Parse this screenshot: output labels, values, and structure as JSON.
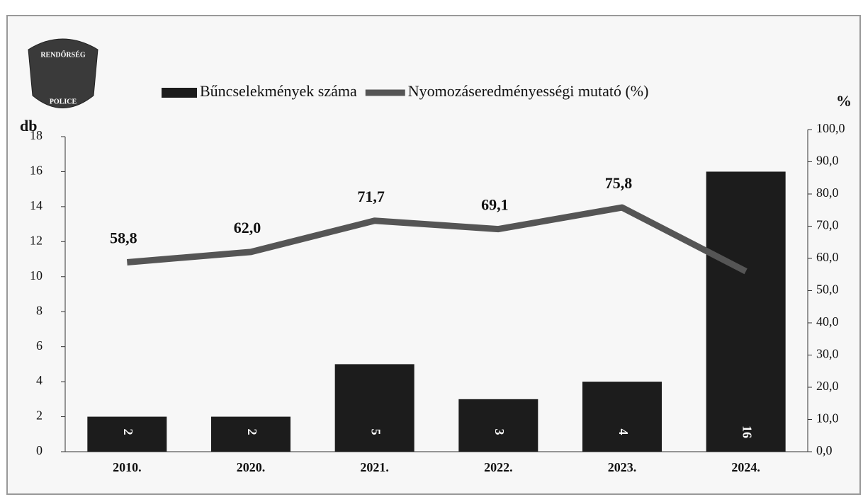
{
  "chart_data": {
    "type": "bar-line",
    "logo": {
      "top": "RENDŐRSÉG",
      "bottom": "POLICE"
    },
    "y_label": "db",
    "y2_label": "%",
    "categories": [
      "2010.",
      "2020.",
      "2021.",
      "2022.",
      "2023.",
      "2024."
    ],
    "series": [
      {
        "name": "Bűncselekmények száma",
        "type": "bar",
        "color": "#1c1c1c",
        "values": [
          2,
          2,
          5,
          3,
          4,
          16
        ]
      },
      {
        "name": "Nyomozáseredményességi mutató (%)",
        "type": "line",
        "color": "#555555",
        "axis": "y2",
        "values": [
          58.8,
          62.0,
          71.7,
          69.1,
          75.8,
          56
        ],
        "value_labels": [
          "58,8",
          "62,0",
          "71,7",
          "69,1",
          "75,8",
          null
        ]
      }
    ],
    "ylim": [
      0,
      18
    ],
    "yticks": [
      0,
      2,
      4,
      6,
      8,
      10,
      12,
      14,
      16,
      18
    ],
    "y2lim": [
      0,
      100
    ],
    "y2ticks": [
      {
        "value": 0,
        "label": "0,0"
      },
      {
        "value": 10,
        "label": "10,0"
      },
      {
        "value": 20,
        "label": "20,0"
      },
      {
        "value": 30,
        "label": "30,0"
      },
      {
        "value": 40,
        "label": "40,0"
      },
      {
        "value": 50,
        "label": "50,0"
      },
      {
        "value": 60,
        "label": "60,0"
      },
      {
        "value": 70,
        "label": "70,0"
      },
      {
        "value": 80,
        "label": "80,0"
      },
      {
        "value": 90,
        "label": "90,0"
      },
      {
        "value": 100,
        "label": "100,0"
      }
    ],
    "legend": "top"
  }
}
